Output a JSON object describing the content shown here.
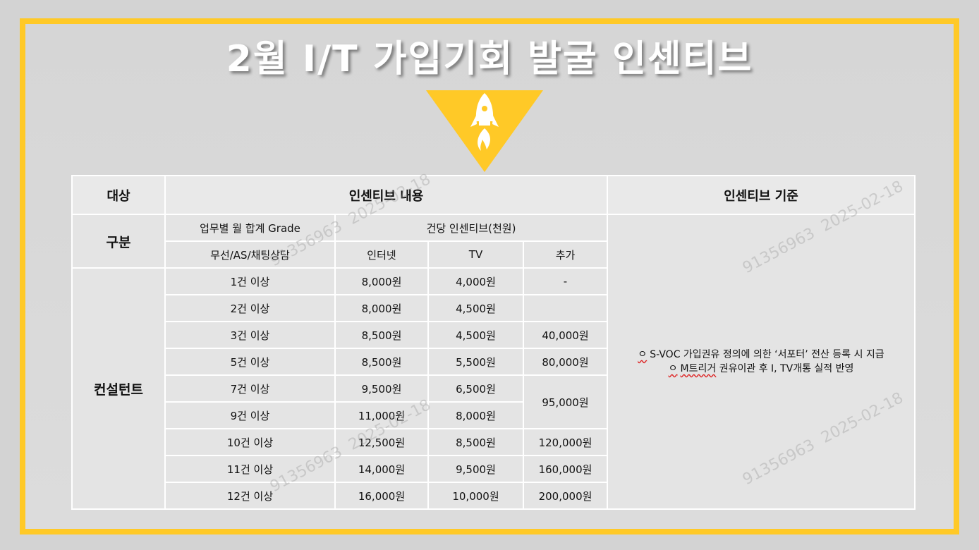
{
  "title": "2월 I/T 가입기회 발굴 인센티브",
  "colors": {
    "accent": "#ffc927",
    "frame_bg": "#d9d9d9",
    "cell_bg": "#e4e4e4"
  },
  "icon": "rocket-icon",
  "watermark": {
    "id": "91356963",
    "date": "2025-02-18"
  },
  "table": {
    "headers": {
      "target": "대상",
      "content": "인센티브 내용",
      "criteria": "인센티브 기준"
    },
    "sub": {
      "category": "구분",
      "grade_label": "업무별 월 합계 Grade",
      "per_case_label": "건당 인센티브(천원)",
      "grade_sub": "무선/AS/채팅상담",
      "internet": "인터넷",
      "tv": "TV",
      "extra": "추가"
    },
    "target_group": "컨설턴트",
    "rows": [
      {
        "grade": "1건 이상",
        "internet": "8,000원",
        "tv": "4,000원",
        "extra": "-"
      },
      {
        "grade": "2건 이상",
        "internet": "8,000원",
        "tv": "4,500원",
        "extra": ""
      },
      {
        "grade": "3건 이상",
        "internet": "8,500원",
        "tv": "4,500원",
        "extra": "40,000원"
      },
      {
        "grade": "5건 이상",
        "internet": "8,500원",
        "tv": "5,500원",
        "extra": "80,000원"
      },
      {
        "grade": "7건 이상",
        "internet": "9,500원",
        "tv": "6,500원",
        "extra": "95,000원"
      },
      {
        "grade": "9건 이상",
        "internet": "11,000원",
        "tv": "8,000원"
      },
      {
        "grade": "10건 이상",
        "internet": "12,500원",
        "tv": "8,500원",
        "extra": "120,000원"
      },
      {
        "grade": "11건 이상",
        "internet": "14,000원",
        "tv": "9,500원",
        "extra": "160,000원"
      },
      {
        "grade": "12건 이상",
        "internet": "16,000원",
        "tv": "10,000원",
        "extra": "200,000원"
      }
    ],
    "criteria": {
      "bullet": "ㅇ",
      "line1_a": "S-VOC 가입권유 정의에 의한 ‘서포터’ 전산 등록 시 지급",
      "line2_a": "M트리거",
      "line2_b": " 권유이관 후 I, TV개통 실적 반영"
    }
  }
}
